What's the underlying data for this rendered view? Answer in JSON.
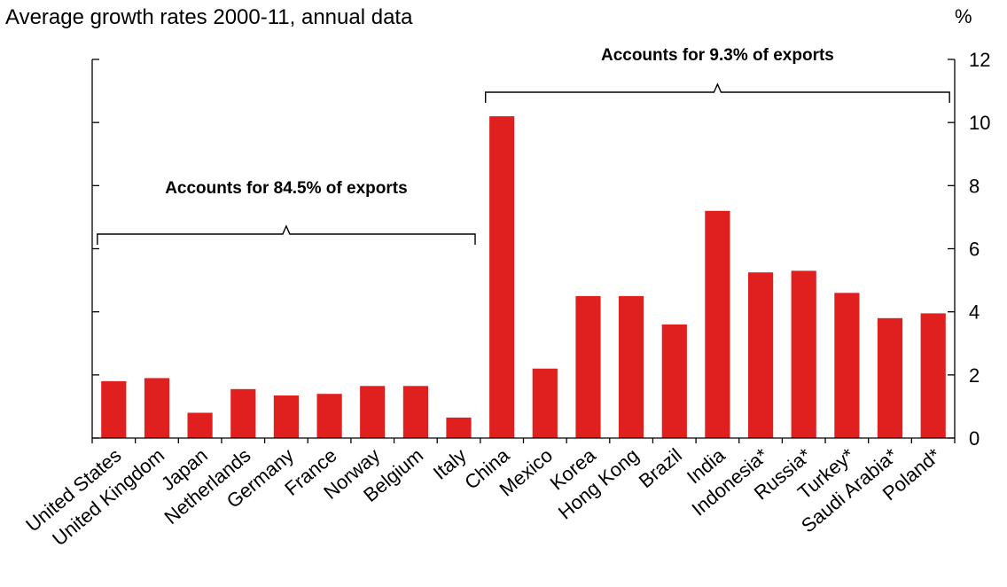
{
  "chart_data": {
    "type": "bar",
    "title": "Average growth rates 2000-11, annual data",
    "ylabel": "%",
    "ylim": [
      0,
      12
    ],
    "yticks": [
      0,
      2,
      4,
      6,
      8,
      10,
      12
    ],
    "categories": [
      "United States",
      "United Kingdom",
      "Japan",
      "Netherlands",
      "Germany",
      "France",
      "Norway",
      "Belgium",
      "Italy",
      "China",
      "Mexico",
      "Korea",
      "Hong Kong",
      "Brazil",
      "India",
      "Indonesia*",
      "Russia*",
      "Turkey*",
      "Saudi Arabia*",
      "Poland*"
    ],
    "values": [
      1.8,
      1.9,
      0.8,
      1.55,
      1.35,
      1.4,
      1.65,
      1.65,
      0.65,
      10.2,
      2.2,
      4.5,
      4.5,
      3.6,
      7.2,
      5.25,
      5.3,
      4.6,
      3.8,
      3.95
    ],
    "bar_color": "#e0201f",
    "annotations": [
      {
        "text": "Accounts for 84.5% of exports",
        "from_category": 0,
        "to_category": 8
      },
      {
        "text": "Accounts for 9.3% of exports",
        "from_category": 9,
        "to_category": 19
      }
    ],
    "grid": false,
    "legend": "none"
  }
}
